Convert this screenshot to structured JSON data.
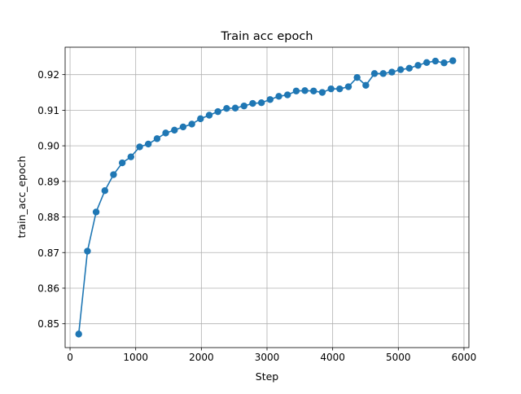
{
  "chart_data": {
    "type": "line",
    "title": "Train acc epoch",
    "xlabel": "Step",
    "ylabel": "train_acc_epoch",
    "xlim": [
      -75,
      6075
    ],
    "ylim": [
      0.8433,
      0.9277
    ],
    "xticks": [
      0,
      1000,
      2000,
      3000,
      4000,
      5000,
      6000
    ],
    "xtick_labels": [
      "0",
      "1000",
      "2000",
      "3000",
      "4000",
      "5000",
      "6000"
    ],
    "yticks": [
      0.85,
      0.86,
      0.87,
      0.88,
      0.89,
      0.9,
      0.91,
      0.92
    ],
    "ytick_labels": [
      "0.85",
      "0.86",
      "0.87",
      "0.88",
      "0.89",
      "0.90",
      "0.91",
      "0.92"
    ],
    "grid": true,
    "legend": "none",
    "marker": "circle",
    "color": "#1f77b4",
    "series": [
      {
        "x": [
          132,
          265,
          397,
          530,
          662,
          795,
          927,
          1060,
          1192,
          1325,
          1457,
          1590,
          1722,
          1855,
          1987,
          2120,
          2252,
          2385,
          2517,
          2650,
          2782,
          2915,
          3047,
          3180,
          3312,
          3445,
          3577,
          3710,
          3842,
          3975,
          4107,
          4240,
          4372,
          4505,
          4637,
          4770,
          4902,
          5035,
          5167,
          5300,
          5432,
          5565,
          5697,
          5830
        ],
        "y": [
          0.8471,
          0.8704,
          0.8814,
          0.8874,
          0.8919,
          0.8952,
          0.8969,
          0.8997,
          0.9005,
          0.902,
          0.9036,
          0.9044,
          0.9053,
          0.9061,
          0.9076,
          0.9086,
          0.9096,
          0.9105,
          0.9106,
          0.9112,
          0.9119,
          0.9121,
          0.913,
          0.9139,
          0.9143,
          0.9154,
          0.9155,
          0.9154,
          0.915,
          0.916,
          0.916,
          0.9166,
          0.9192,
          0.917,
          0.9203,
          0.9203,
          0.9207,
          0.9214,
          0.9218,
          0.9226,
          0.9234,
          0.9238,
          0.9233,
          0.9239
        ]
      }
    ]
  }
}
